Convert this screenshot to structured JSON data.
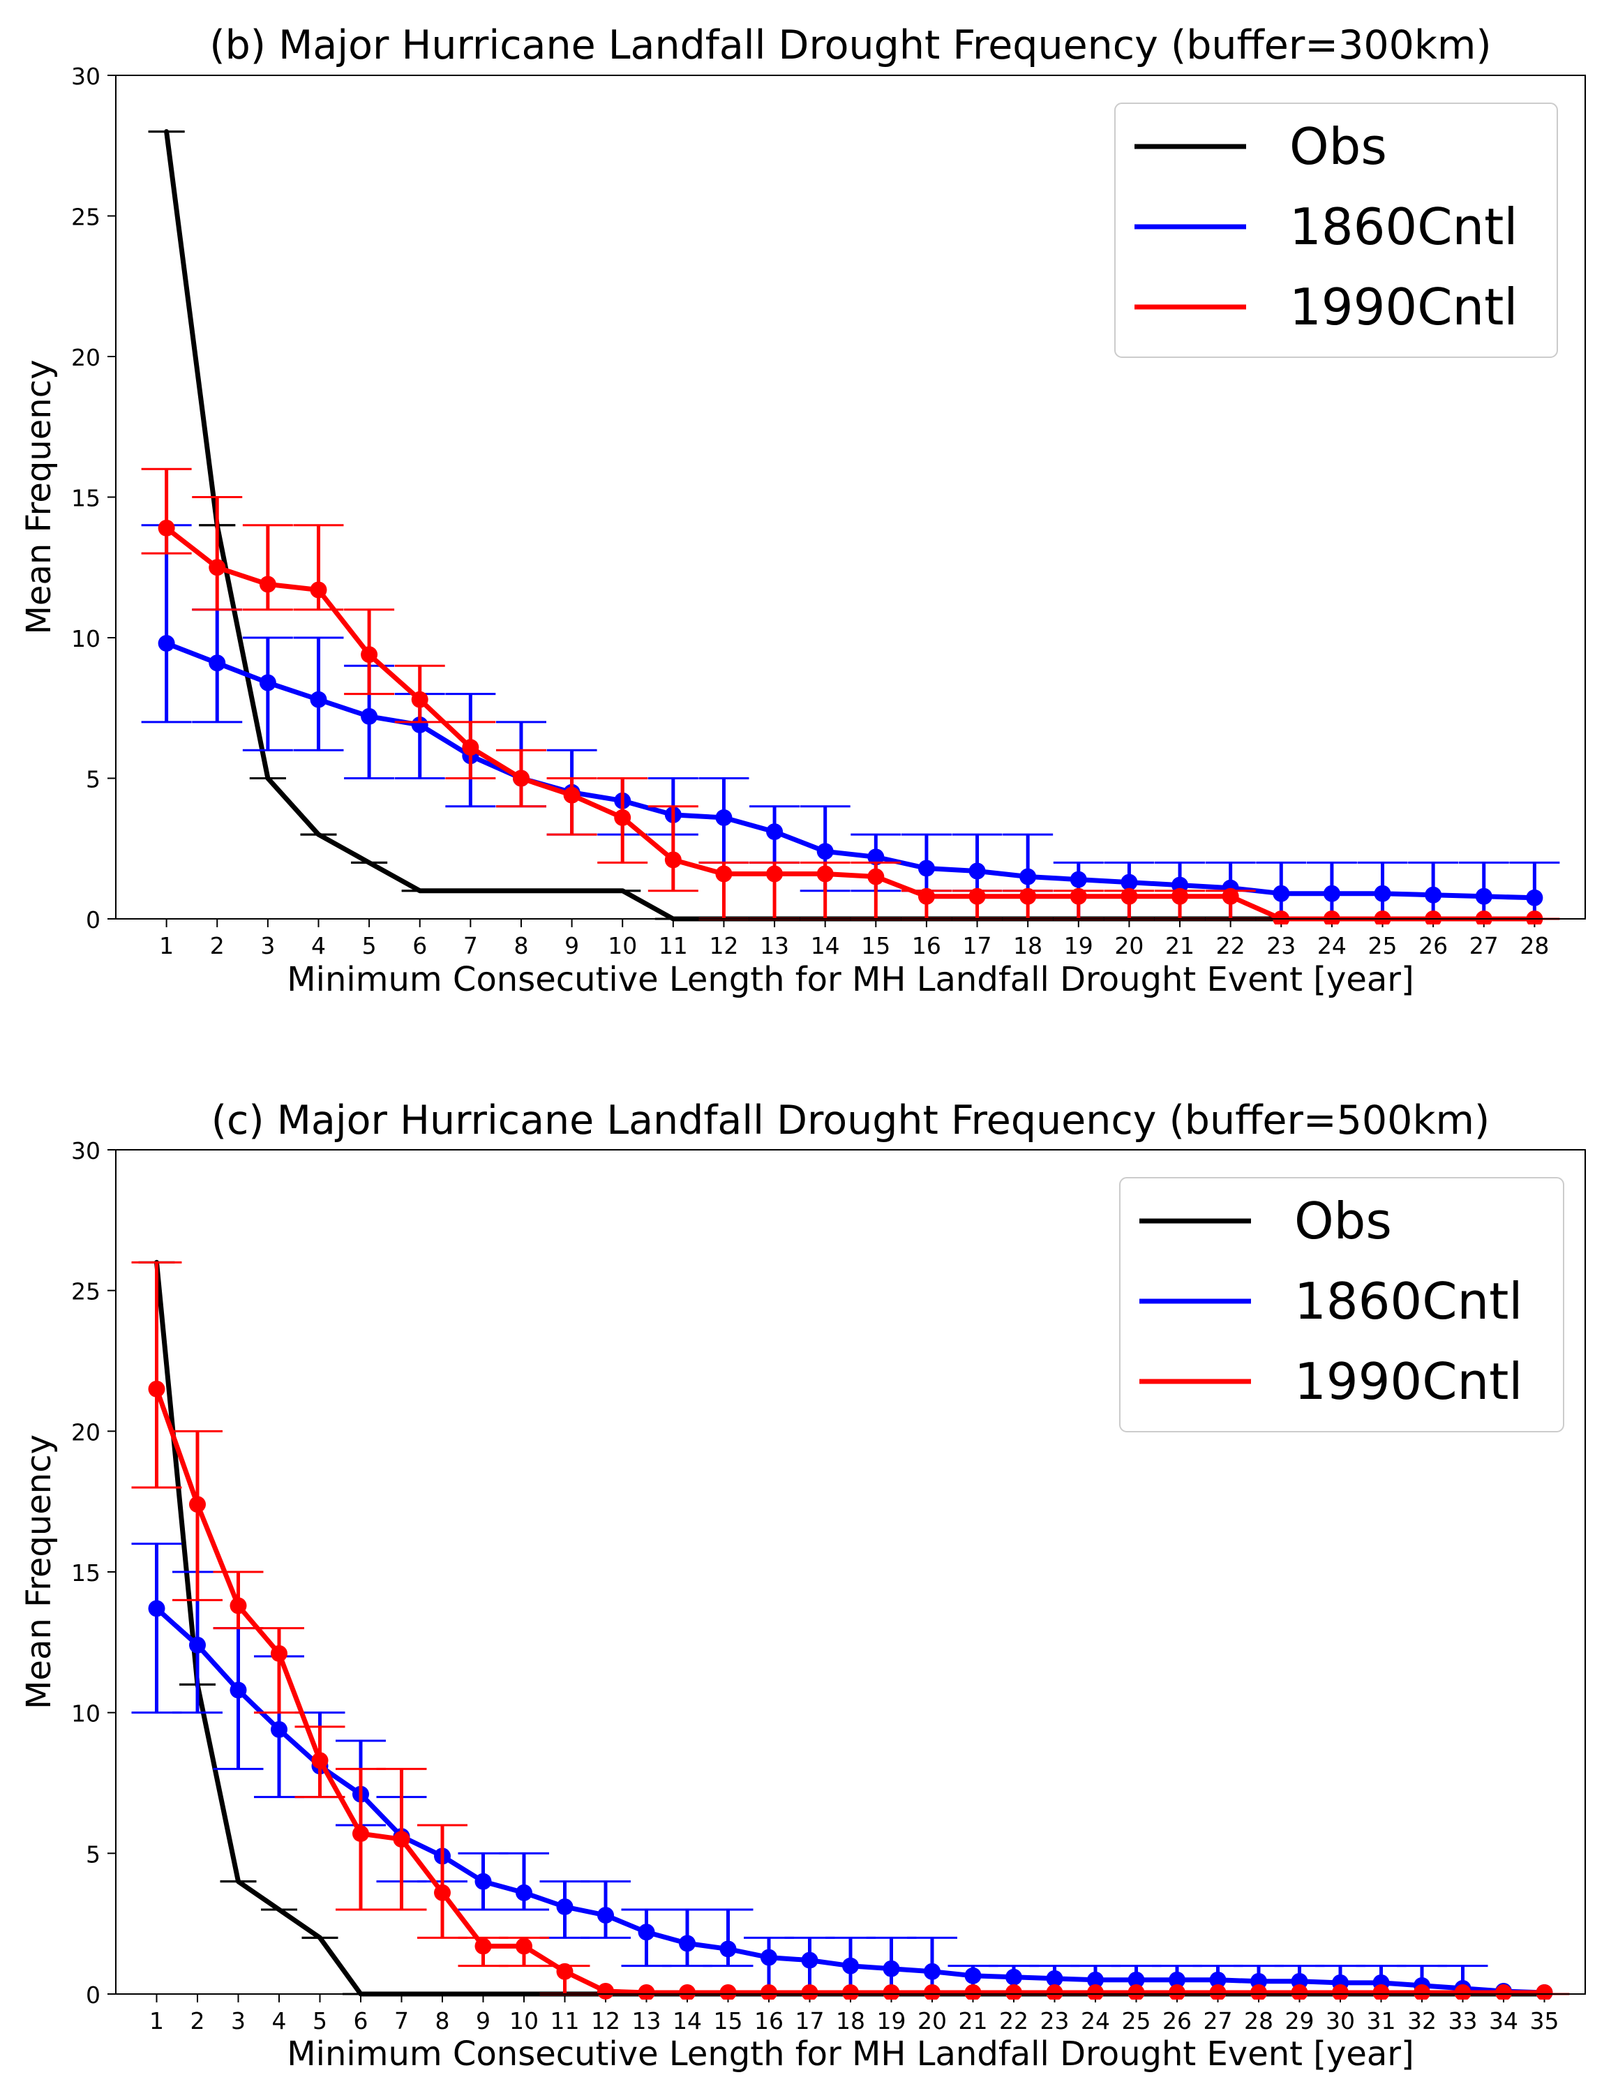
{
  "chart_data": [
    {
      "type": "line",
      "title": "(b) Major Hurricane Landfall Drought Frequency (buffer=300km)",
      "xlabel": "Minimum Consecutive Length for MH Landfall Drought Event [year]",
      "ylabel": "Mean Frequency",
      "xlim": [
        0,
        29
      ],
      "ylim": [
        0,
        30
      ],
      "yticks": [
        0,
        5,
        10,
        15,
        20,
        25,
        30
      ],
      "x": [
        1,
        2,
        3,
        4,
        5,
        6,
        7,
        8,
        9,
        10,
        11,
        12,
        13,
        14,
        15,
        16,
        17,
        18,
        19,
        20,
        21,
        22,
        23,
        24,
        25,
        26,
        27,
        28
      ],
      "grid": false,
      "legend": "top-right",
      "series": [
        {
          "name": "Obs",
          "color": "#000000",
          "markers": false,
          "values": [
            28,
            14,
            5,
            3,
            2,
            1,
            1,
            1,
            1,
            1,
            0,
            0,
            0,
            0,
            0,
            0,
            0,
            0,
            0,
            0,
            0,
            0,
            0,
            0,
            0,
            0,
            0,
            0
          ],
          "err_low": [
            28,
            14,
            5,
            3,
            2,
            1,
            1,
            1,
            1,
            1,
            0,
            0,
            0,
            0,
            0,
            0,
            0,
            0,
            0,
            0,
            0,
            0,
            0,
            0,
            0,
            0,
            0,
            0
          ],
          "err_high": [
            28,
            14,
            5,
            3,
            2,
            1,
            1,
            1,
            1,
            1,
            0,
            0,
            0,
            0,
            0,
            0,
            0,
            0,
            0,
            0,
            0,
            0,
            0,
            0,
            0,
            0,
            0,
            0
          ]
        },
        {
          "name": "1860Cntl",
          "color": "#0000ff",
          "markers": true,
          "values": [
            9.8,
            9.1,
            8.4,
            7.8,
            7.2,
            6.9,
            5.8,
            5.0,
            4.5,
            4.2,
            3.7,
            3.6,
            3.1,
            2.4,
            2.2,
            1.8,
            1.7,
            1.5,
            1.4,
            1.3,
            1.2,
            1.1,
            0.9,
            0.9,
            0.9,
            0.85,
            0.8,
            0.75
          ],
          "err_low": [
            7,
            7,
            6,
            6,
            5,
            5,
            4,
            4,
            3,
            3,
            3,
            2,
            2,
            1,
            1,
            1,
            1,
            1,
            0,
            0,
            0,
            0,
            0,
            0,
            0,
            0,
            0,
            0
          ],
          "err_high": [
            14,
            11,
            10,
            10,
            9,
            8,
            8,
            7,
            6,
            5,
            5,
            5,
            4,
            4,
            3,
            3,
            3,
            3,
            2,
            2,
            2,
            2,
            2,
            2,
            2,
            2,
            2,
            2
          ]
        },
        {
          "name": "1990Cntl",
          "color": "#ff0000",
          "markers": true,
          "values": [
            13.9,
            12.5,
            11.9,
            11.7,
            9.4,
            7.8,
            6.1,
            5.0,
            4.4,
            3.6,
            2.1,
            1.6,
            1.6,
            1.6,
            1.5,
            0.8,
            0.8,
            0.8,
            0.8,
            0.8,
            0.8,
            0.8,
            0,
            0,
            0,
            0,
            0,
            0
          ],
          "err_low": [
            13,
            11,
            11,
            11,
            8,
            7,
            5,
            4,
            3,
            2,
            1,
            0,
            0,
            0,
            0,
            0,
            0,
            0,
            0,
            0,
            0,
            0,
            0,
            0,
            0,
            0,
            0,
            0
          ],
          "err_high": [
            16,
            15,
            14,
            14,
            11,
            9,
            7,
            6,
            5,
            5,
            4,
            2,
            2,
            2,
            2,
            1,
            1,
            1,
            1,
            1,
            1,
            1,
            0,
            0,
            0,
            0,
            0,
            0
          ]
        }
      ]
    },
    {
      "type": "line",
      "title": "(c) Major Hurricane Landfall Drought Frequency (buffer=500km)",
      "xlabel": "Minimum Consecutive Length for MH Landfall Drought Event [year]",
      "ylabel": "Mean Frequency",
      "xlim": [
        0,
        36
      ],
      "ylim": [
        0,
        30
      ],
      "yticks": [
        0,
        5,
        10,
        15,
        20,
        25,
        30
      ],
      "x": [
        1,
        2,
        3,
        4,
        5,
        6,
        7,
        8,
        9,
        10,
        11,
        12,
        13,
        14,
        15,
        16,
        17,
        18,
        19,
        20,
        21,
        22,
        23,
        24,
        25,
        26,
        27,
        28,
        29,
        30,
        31,
        32,
        33,
        34,
        35
      ],
      "grid": false,
      "legend": "top-right",
      "series": [
        {
          "name": "Obs",
          "color": "#000000",
          "markers": false,
          "values": [
            26,
            11,
            4,
            3,
            2,
            0,
            0,
            0,
            0,
            0,
            0,
            0,
            0,
            0,
            0,
            0,
            0,
            0,
            0,
            0,
            0,
            0,
            0,
            0,
            0,
            0,
            0,
            0,
            0,
            0,
            0,
            0,
            0,
            0,
            0
          ],
          "err_low": [
            26,
            11,
            4,
            3,
            2,
            0,
            0,
            0,
            0,
            0,
            0,
            0,
            0,
            0,
            0,
            0,
            0,
            0,
            0,
            0,
            0,
            0,
            0,
            0,
            0,
            0,
            0,
            0,
            0,
            0,
            0,
            0,
            0,
            0,
            0
          ],
          "err_high": [
            26,
            11,
            4,
            3,
            2,
            0,
            0,
            0,
            0,
            0,
            0,
            0,
            0,
            0,
            0,
            0,
            0,
            0,
            0,
            0,
            0,
            0,
            0,
            0,
            0,
            0,
            0,
            0,
            0,
            0,
            0,
            0,
            0,
            0,
            0
          ]
        },
        {
          "name": "1860Cntl",
          "color": "#0000ff",
          "markers": true,
          "values": [
            13.7,
            12.4,
            10.8,
            9.4,
            8.1,
            7.1,
            5.6,
            4.9,
            4.0,
            3.6,
            3.1,
            2.8,
            2.2,
            1.8,
            1.6,
            1.3,
            1.2,
            1.0,
            0.9,
            0.8,
            0.65,
            0.6,
            0.55,
            0.5,
            0.5,
            0.5,
            0.5,
            0.45,
            0.45,
            0.4,
            0.4,
            0.3,
            0.2,
            0.1,
            0.05
          ],
          "err_low": [
            10,
            10,
            8,
            7,
            7,
            6,
            4,
            4,
            3,
            3,
            2,
            2,
            1,
            1,
            1,
            0,
            0,
            0,
            0,
            0,
            0,
            0,
            0,
            0,
            0,
            0,
            0,
            0,
            0,
            0,
            0,
            0,
            0,
            0,
            0
          ],
          "err_high": [
            16,
            15,
            13,
            12,
            10,
            9,
            7,
            6,
            5,
            5,
            4,
            4,
            3,
            3,
            3,
            2,
            2,
            2,
            2,
            2,
            1,
            1,
            1,
            1,
            1,
            1,
            1,
            1,
            1,
            1,
            1,
            1,
            1,
            0,
            0
          ]
        },
        {
          "name": "1990Cntl",
          "color": "#ff0000",
          "markers": true,
          "values": [
            21.5,
            17.4,
            13.8,
            12.1,
            8.3,
            5.7,
            5.5,
            3.6,
            1.7,
            1.7,
            0.8,
            0.1,
            0.05,
            0.05,
            0.05,
            0.05,
            0.05,
            0.05,
            0.05,
            0.05,
            0.05,
            0.05,
            0.05,
            0.05,
            0.05,
            0.05,
            0.05,
            0.05,
            0.05,
            0.05,
            0.05,
            0.05,
            0.05,
            0.05,
            0.05
          ],
          "err_low": [
            18,
            14,
            13,
            10,
            7,
            3,
            3,
            2,
            1,
            1,
            0,
            0,
            0,
            0,
            0,
            0,
            0,
            0,
            0,
            0,
            0,
            0,
            0,
            0,
            0,
            0,
            0,
            0,
            0,
            0,
            0,
            0,
            0,
            0,
            0
          ],
          "err_high": [
            26,
            20,
            15,
            13,
            9.5,
            8,
            8,
            6,
            2,
            2,
            1,
            0,
            0,
            0,
            0,
            0,
            0,
            0,
            0,
            0,
            0,
            0,
            0,
            0,
            0,
            0,
            0,
            0,
            0,
            0,
            0,
            0,
            0,
            0,
            0
          ]
        }
      ]
    }
  ]
}
